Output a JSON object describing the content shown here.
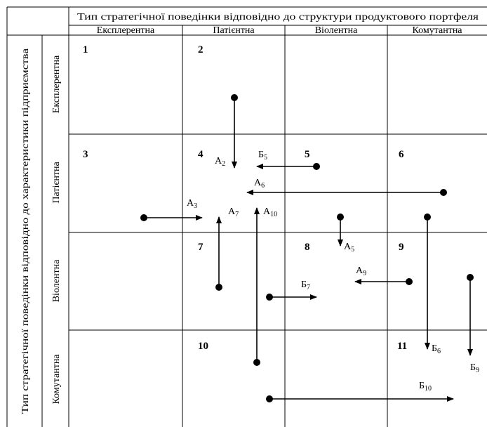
{
  "header": {
    "title": "Тип стратегічної поведінки відповідно до структури продуктового портфеля",
    "columns": [
      "Експлерентна",
      "Патієнтна",
      "Віолентна",
      "Комутантна"
    ]
  },
  "side": {
    "title": "Тип стратегічної поведінки відповідно до характеристики підприємства",
    "rows": [
      "Експлерентна",
      "Патієнтна",
      "Віолентна",
      "Комутантна"
    ]
  },
  "cell_numbers": [
    "1",
    "2",
    "3",
    "4",
    "5",
    "6",
    "7",
    "8",
    "9",
    "10",
    "11"
  ],
  "arrows": [
    {
      "id": "A2",
      "letter": "А",
      "sub": "2"
    },
    {
      "id": "A3",
      "letter": "А",
      "sub": "3"
    },
    {
      "id": "A5",
      "letter": "А",
      "sub": "5"
    },
    {
      "id": "A6",
      "letter": "А",
      "sub": "6"
    },
    {
      "id": "A7",
      "letter": "А",
      "sub": "7"
    },
    {
      "id": "A9",
      "letter": "А",
      "sub": "9"
    },
    {
      "id": "A10",
      "letter": "А",
      "sub": "10"
    },
    {
      "id": "B5",
      "letter": "Б",
      "sub": "5"
    },
    {
      "id": "B6",
      "letter": "Б",
      "sub": "6"
    },
    {
      "id": "B7",
      "letter": "Б",
      "sub": "7"
    },
    {
      "id": "B9",
      "letter": "Б",
      "sub": "9"
    },
    {
      "id": "B10",
      "letter": "Б",
      "sub": "10"
    }
  ]
}
